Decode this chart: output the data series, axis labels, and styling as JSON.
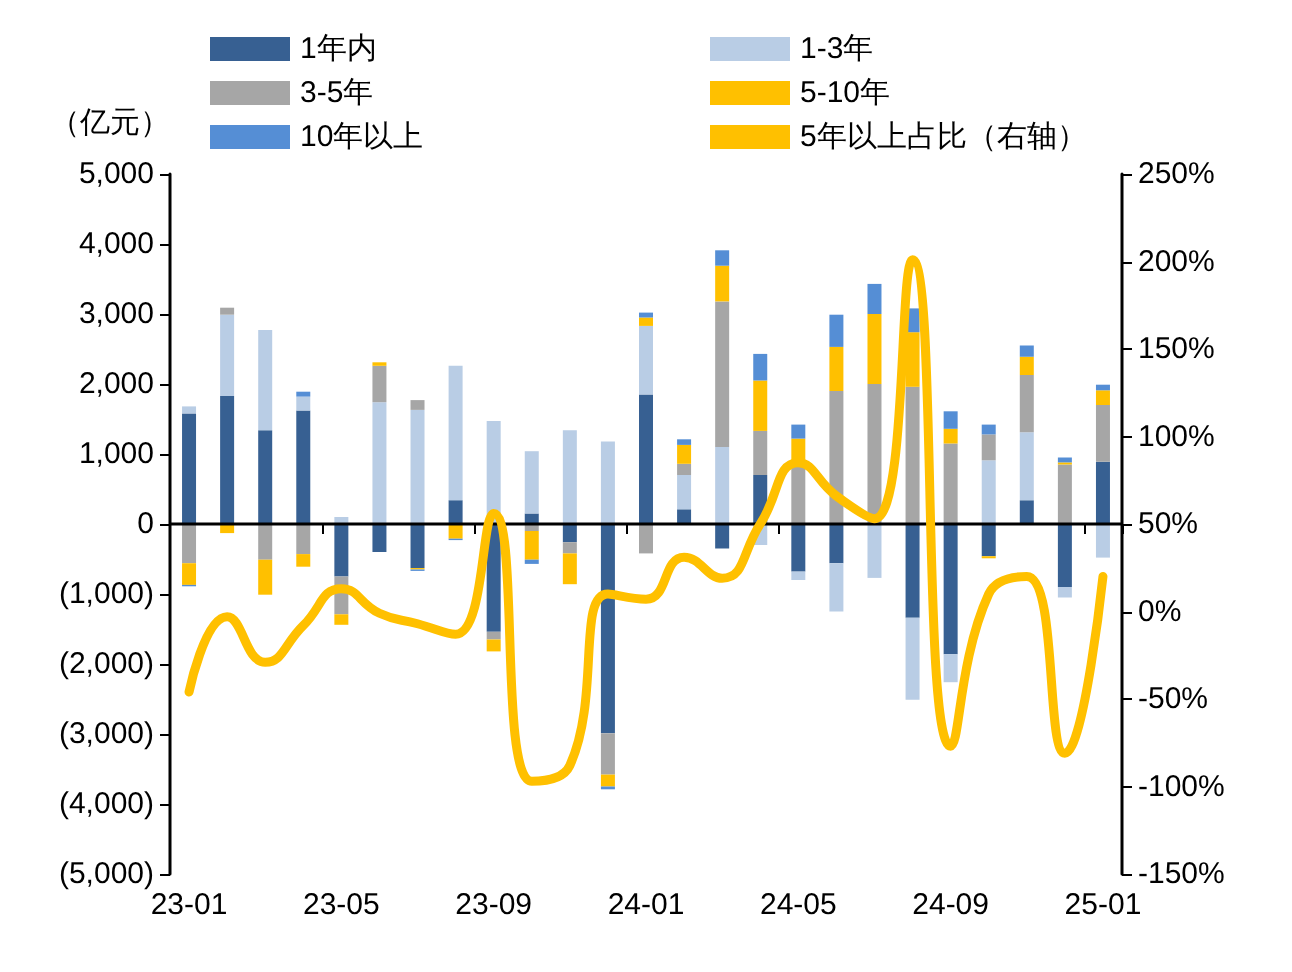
{
  "chart_data": {
    "type": "bar",
    "stacked": true,
    "ylabel": "（亿元）",
    "categories": [
      "23-01",
      null,
      null,
      null,
      "23-05",
      null,
      null,
      null,
      "23-09",
      null,
      null,
      null,
      "24-01",
      null,
      null,
      null,
      "24-05",
      null,
      null,
      null,
      "24-09",
      null,
      null,
      null,
      "25-01"
    ],
    "series": [
      {
        "name": "1年内",
        "color": "#376092",
        "values": [
          1580,
          1830,
          1340,
          1620,
          -750,
          -400,
          -630,
          340,
          -1540,
          150,
          -260,
          -2990,
          1850,
          210,
          -350,
          700,
          -680,
          -560,
          null,
          -1340,
          -1860,
          -460,
          340,
          -900,
          890
        ]
      },
      {
        "name": "1-3年",
        "color": "#b9cde5",
        "values": [
          100,
          1160,
          1430,
          200,
          100,
          1740,
          1630,
          1920,
          1470,
          890,
          1340,
          1180,
          980,
          490,
          1100,
          -300,
          -120,
          -690,
          -770,
          -1170,
          -400,
          910,
          970,
          -150,
          -480
        ]
      },
      {
        "name": "3-5年",
        "color": "#a6a6a6",
        "values": [
          -560,
          100,
          -510,
          -430,
          -540,
          520,
          140,
          null,
          -110,
          -100,
          -160,
          -590,
          -420,
          160,
          2080,
          630,
          870,
          1900,
          2000,
          1960,
          1150,
          370,
          820,
          850,
          810
        ]
      },
      {
        "name": "5-10年",
        "color": "#ffc000",
        "values": [
          -310,
          -130,
          -500,
          -180,
          -150,
          50,
          -20,
          -210,
          -170,
          -410,
          -440,
          -170,
          120,
          270,
          510,
          720,
          350,
          630,
          1000,
          780,
          210,
          -30,
          260,
          30,
          210
        ]
      },
      {
        "name": "10年以上",
        "color": "#558ed5",
        "values": [
          -20,
          null,
          null,
          70,
          null,
          null,
          -20,
          -20,
          null,
          -60,
          null,
          -40,
          70,
          80,
          220,
          380,
          200,
          460,
          430,
          340,
          250,
          140,
          160,
          70,
          80
        ]
      },
      {
        "name": "5年以上占比（右轴）",
        "type": "line",
        "axis": "y2",
        "color": "#ffc000",
        "values": [
          -46,
          -3,
          -29,
          -8,
          13,
          -1,
          -7,
          -13,
          56,
          -97,
          -88,
          10,
          7,
          31,
          19,
          50,
          85,
          66,
          53,
          201,
          -77,
          10,
          20,
          -81,
          20
        ]
      }
    ],
    "ylim": [
      -5000,
      5000
    ],
    "yticks": [
      {
        "value": -5000,
        "label": "(5,000)"
      },
      {
        "value": -4000,
        "label": "(4,000)"
      },
      {
        "value": -3000,
        "label": "(3,000)"
      },
      {
        "value": -2000,
        "label": "(2,000)"
      },
      {
        "value": -1000,
        "label": "(1,000)"
      },
      0,
      {
        "value": 1000,
        "label": "1,000"
      },
      {
        "value": 2000,
        "label": "2,000"
      },
      {
        "value": 3000,
        "label": "3,000"
      },
      {
        "value": 4000,
        "label": "4,000"
      },
      {
        "value": 5000,
        "label": "5,000"
      }
    ],
    "y2lim": [
      -150,
      250
    ],
    "y2ticks": [
      {
        "value": -150,
        "label": "-150%"
      },
      {
        "value": -100,
        "label": "-100%"
      },
      {
        "value": -50,
        "label": "-50%"
      },
      {
        "value": 0,
        "label": "0%"
      },
      {
        "value": 50,
        "label": "50%"
      },
      {
        "value": 100,
        "label": "100%"
      },
      {
        "value": 150,
        "label": "150%"
      },
      {
        "value": 200,
        "label": "200%"
      },
      {
        "value": 250,
        "label": "250%"
      }
    ],
    "ref_lines": [
      {
        "axis": "y",
        "value": 0,
        "color": "#000000",
        "line_style": "solid"
      }
    ],
    "grid": false,
    "legend": "top",
    "line_style": "solid"
  }
}
